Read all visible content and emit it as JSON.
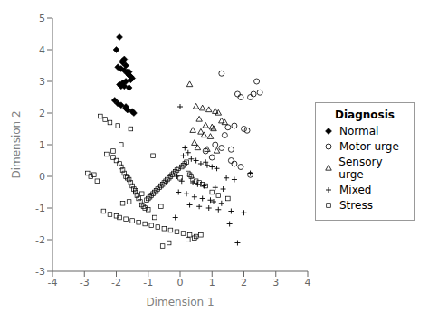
{
  "chart_data": {
    "type": "scatter",
    "xlabel": "Dimension 1",
    "ylabel": "Dimension 2",
    "xlim": [
      -4,
      4
    ],
    "ylim": [
      -3,
      5
    ],
    "xticks": [
      -4,
      -3,
      -2,
      -1,
      0,
      1,
      2,
      3,
      4
    ],
    "yticks": [
      -3,
      -2,
      -1,
      0,
      1,
      2,
      3,
      4,
      5
    ],
    "legend_title": "Diagnosis",
    "legend": "right",
    "grid": false,
    "series": [
      {
        "name": "Normal",
        "color": "#000000",
        "marker": "diamond",
        "x": [
          -1.9,
          -2.0,
          -1.75,
          -1.7,
          -1.85,
          -1.6,
          -1.65,
          -1.55,
          -1.5,
          -1.7,
          -1.8,
          -1.9,
          -1.75,
          -1.6,
          -2.05,
          -1.95,
          -1.85,
          -1.7,
          -1.65,
          -1.8,
          -1.95,
          -1.75,
          -1.6,
          -1.55,
          -1.85,
          -1.45,
          -1.7,
          -1.5,
          -1.8,
          -1.65
        ],
        "y": [
          4.4,
          4.0,
          3.7,
          3.5,
          3.4,
          3.3,
          3.25,
          3.15,
          3.1,
          3.0,
          2.95,
          2.9,
          2.85,
          2.8,
          2.4,
          2.3,
          2.25,
          2.2,
          2.1,
          3.6,
          3.45,
          3.35,
          3.2,
          3.05,
          2.85,
          2.0,
          2.15,
          2.05,
          3.65,
          3.3
        ]
      },
      {
        "name": "Motor urge",
        "color": "#000000",
        "marker": "open_circle",
        "x": [
          1.3,
          2.4,
          2.5,
          2.3,
          2.2,
          1.8,
          1.9,
          2.1,
          1.5,
          1.7,
          2.0,
          1.6,
          1.4,
          1.1,
          1.3,
          1.6,
          1.9,
          1.0,
          1.7,
          2.2,
          0.8
        ],
        "y": [
          3.25,
          3.0,
          2.65,
          2.6,
          2.5,
          2.6,
          2.5,
          1.45,
          1.55,
          1.6,
          1.5,
          0.85,
          1.3,
          1.0,
          0.9,
          0.5,
          0.3,
          0.6,
          0.4,
          0.05,
          0.8
        ]
      },
      {
        "name": "Sensory urge",
        "color": "#000000",
        "marker": "open_triangle",
        "x": [
          0.3,
          0.5,
          0.7,
          0.9,
          1.1,
          1.2,
          1.3,
          1.4,
          0.6,
          0.8,
          1.0,
          0.4,
          0.75,
          1.05,
          0.55,
          0.85,
          1.15,
          0.65,
          0.95,
          0.45
        ],
        "y": [
          2.9,
          2.2,
          2.15,
          2.1,
          2.05,
          2.0,
          1.75,
          1.7,
          1.8,
          1.6,
          1.55,
          1.45,
          1.3,
          1.5,
          0.9,
          0.85,
          0.8,
          1.4,
          1.25,
          1.05
        ]
      },
      {
        "name": "Mixed",
        "color": "#000000",
        "marker": "plus",
        "x": [
          0.0,
          0.15,
          0.25,
          0.35,
          0.5,
          0.65,
          0.85,
          1.0,
          1.15,
          1.45,
          1.7,
          2.2,
          -0.1,
          0.05,
          0.4,
          0.55,
          0.75,
          1.1,
          1.35,
          0.2,
          0.45,
          0.7,
          0.95,
          1.05,
          1.3,
          0.3,
          0.6,
          0.9,
          1.2,
          1.6,
          2.0,
          -0.05,
          0.8,
          -0.15,
          0.1,
          1.55,
          1.8
        ],
        "y": [
          2.2,
          0.9,
          0.75,
          0.55,
          0.5,
          0.4,
          0.35,
          0.3,
          0.25,
          -0.05,
          -0.1,
          0.1,
          0.0,
          -0.15,
          -0.2,
          -0.25,
          -0.3,
          -0.35,
          -0.4,
          -0.55,
          -0.65,
          -0.7,
          -0.75,
          -0.8,
          -0.85,
          -0.9,
          -0.95,
          -1.0,
          -1.05,
          -1.1,
          -1.15,
          -0.5,
          0.45,
          -1.3,
          0.65,
          -1.5,
          -2.1
        ]
      },
      {
        "name": "Stress",
        "color": "#000000",
        "marker": "open_square",
        "x": [
          -2.9,
          -2.7,
          -2.5,
          -2.35,
          -2.2,
          -2.1,
          -2.0,
          -1.9,
          -1.85,
          -1.8,
          -1.75,
          -1.7,
          -1.65,
          -1.6,
          -1.55,
          -1.5,
          -1.45,
          -1.4,
          -1.35,
          -1.3,
          -1.25,
          -1.2,
          -1.15,
          -1.1,
          -1.05,
          -1.0,
          -0.95,
          -0.9,
          -0.85,
          -0.8,
          -0.75,
          -0.7,
          -0.65,
          -0.6,
          -0.55,
          -0.5,
          -0.45,
          -0.4,
          -0.35,
          -0.3,
          -0.25,
          -0.2,
          -0.15,
          -0.1,
          -0.05,
          0.0,
          0.05,
          0.1,
          0.15,
          0.2,
          0.25,
          0.3,
          0.35,
          0.4,
          0.5,
          0.6,
          0.7,
          0.8,
          1.0,
          1.2,
          1.5,
          -2.4,
          -2.2,
          -2.0,
          -1.9,
          -1.7,
          -1.5,
          -1.3,
          -1.1,
          -0.9,
          -0.7,
          -0.5,
          -0.3,
          -0.1,
          0.1,
          0.3,
          0.5,
          -2.3,
          -2.1,
          -1.8,
          -1.6,
          -1.4,
          -1.2,
          -1.0,
          -0.8,
          -0.6,
          -2.6,
          -2.8,
          -1.95,
          -1.55,
          -0.55,
          -0.35,
          0.25,
          0.45,
          0.65,
          -0.85,
          -1.85
        ],
        "y": [
          0.1,
          0.05,
          1.9,
          1.8,
          1.7,
          0.8,
          0.5,
          0.4,
          0.3,
          0.2,
          0.1,
          0.0,
          -0.05,
          -0.1,
          -0.2,
          -0.3,
          -0.4,
          -0.5,
          -0.6,
          -0.7,
          -0.8,
          -0.9,
          -0.95,
          -1.0,
          -0.75,
          -0.7,
          -0.65,
          -0.6,
          -0.55,
          -0.5,
          -0.45,
          -0.4,
          -0.35,
          -0.3,
          -0.25,
          -0.2,
          -0.15,
          -0.1,
          -0.05,
          0.0,
          0.05,
          0.1,
          0.15,
          0.2,
          0.25,
          -0.05,
          0.3,
          0.35,
          0.4,
          0.45,
          0.1,
          0.05,
          0.0,
          -0.1,
          -0.15,
          -0.2,
          -0.25,
          -0.3,
          -0.5,
          -0.6,
          -0.7,
          -1.1,
          -1.2,
          -1.25,
          -1.3,
          -1.35,
          -1.4,
          -1.45,
          -1.5,
          -1.55,
          -1.6,
          -1.65,
          -1.7,
          -1.75,
          -1.8,
          -1.85,
          -1.9,
          0.7,
          0.6,
          -0.85,
          -0.8,
          -0.45,
          -0.55,
          -1.05,
          -1.3,
          -0.95,
          -0.15,
          0.0,
          1.6,
          1.5,
          -2.2,
          -2.1,
          -2.0,
          -1.95,
          -1.85,
          0.65,
          1.0
        ]
      }
    ]
  }
}
